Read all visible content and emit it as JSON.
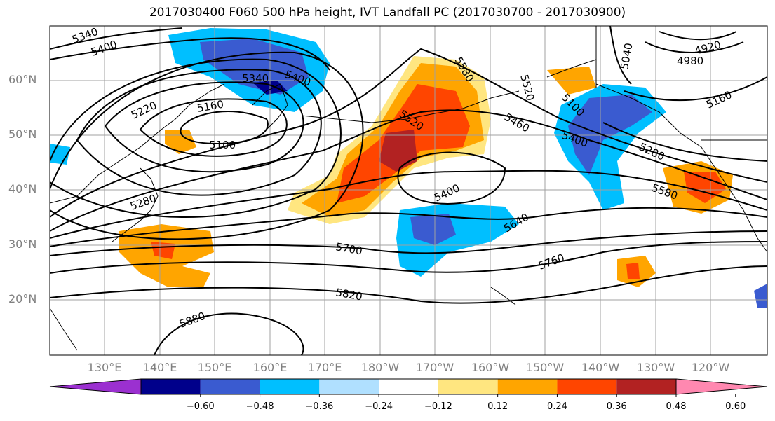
{
  "title": "2017030400 F060 500 hPa height, IVT Landfall PC (2017030700 - 2017030900)",
  "latitude_labels": [
    "60°N",
    "50°N",
    "40°N",
    "30°N",
    "20°N"
  ],
  "longitude_labels": [
    "130°E",
    "140°E",
    "150°E",
    "160°E",
    "170°E",
    "180°W",
    "170°W",
    "160°W",
    "150°W",
    "140°W",
    "130°W",
    "120°W"
  ],
  "height_contour_labels": [
    "5340",
    "5400",
    "5340",
    "5400",
    "5220",
    "5160",
    "5100",
    "5280",
    "5520",
    "5460",
    "5400",
    "5640",
    "5700",
    "5760",
    "5820",
    "5880",
    "5040",
    "4920",
    "4980",
    "5160",
    "5280",
    "5580",
    "5100",
    "5400",
    "5520",
    "5580"
  ],
  "colorbar": {
    "ticks": [
      "−0.60",
      "−0.48",
      "−0.36",
      "−0.24",
      "−0.12",
      "0.12",
      "0.24",
      "0.36",
      "0.48",
      "0.60"
    ],
    "colors": [
      "#9b30d0",
      "#00008b",
      "#3a5bd0",
      "#00bfff",
      "#b0e0ff",
      "#ffffff",
      "#ffe680",
      "#ffa500",
      "#ff4500",
      "#b22222",
      "#ff88b0"
    ]
  },
  "colors": {
    "contour": "#000000",
    "grid": "#a0a0a0",
    "axis_label": "#808080"
  }
}
